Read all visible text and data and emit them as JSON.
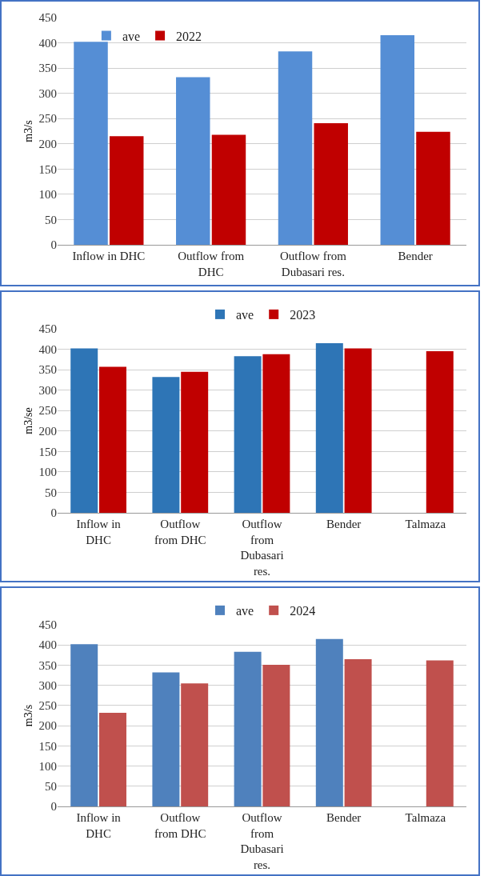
{
  "chart_data": [
    {
      "type": "bar",
      "ylabel": "m3/s",
      "categories": [
        "Inflow in DHC",
        "Outflow from DHC",
        "Outflow from Dubasari res.",
        "Bender"
      ],
      "series": [
        {
          "name": "ave",
          "color": "#558ed5",
          "values": [
            402,
            332,
            383,
            415
          ]
        },
        {
          "name": "2022",
          "color": "#c00000",
          "values": [
            215,
            218,
            241,
            224
          ]
        }
      ],
      "ylim": [
        0,
        450
      ],
      "yticks": [
        0,
        50,
        100,
        150,
        200,
        250,
        300,
        350,
        400,
        450
      ],
      "grid": "y",
      "legend": "top left"
    },
    {
      "type": "bar",
      "ylabel": "m3/se",
      "categories": [
        "Inflow in DHC",
        "Outflow from DHC",
        "Outflow from Dubasari res.",
        "Bender",
        "Talmaza"
      ],
      "series": [
        {
          "name": "ave",
          "color": "#2e75b6",
          "values": [
            402,
            332,
            383,
            415,
            null
          ]
        },
        {
          "name": "2023",
          "color": "#c00000",
          "values": [
            357,
            345,
            388,
            402,
            395
          ]
        }
      ],
      "ylim": [
        0,
        450
      ],
      "yticks": [
        0,
        50,
        100,
        150,
        200,
        250,
        300,
        350,
        400,
        450
      ],
      "grid": "y",
      "legend": "top"
    },
    {
      "type": "bar",
      "ylabel": "m3/s",
      "categories": [
        "Inflow in DHC",
        "Outflow from DHC",
        "Outflow from Dubasari res.",
        "Bender",
        "Talmaza"
      ],
      "series": [
        {
          "name": "ave",
          "color": "#4f81bd",
          "values": [
            402,
            332,
            383,
            415,
            null
          ]
        },
        {
          "name": "2024",
          "color": "#c0504d",
          "values": [
            232,
            305,
            351,
            365,
            362
          ]
        }
      ],
      "ylim": [
        0,
        450
      ],
      "yticks": [
        0,
        50,
        100,
        150,
        200,
        250,
        300,
        350,
        400,
        450
      ],
      "grid": "y",
      "legend": "top"
    }
  ]
}
